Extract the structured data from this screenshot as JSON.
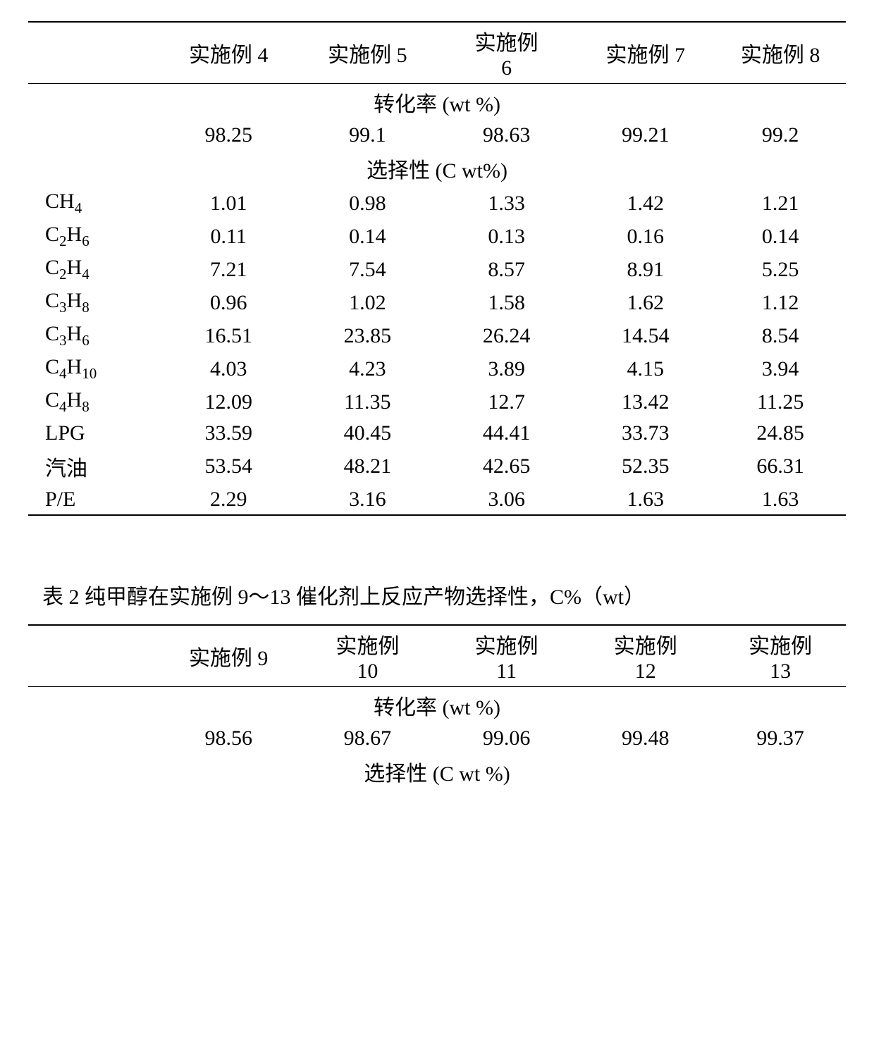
{
  "table1": {
    "headers": [
      "",
      "实施例 4",
      "实施例 5",
      "实施例 6",
      "实施例 7",
      "实施例 8"
    ],
    "section1": "转化率  (wt %)",
    "conversion": [
      "",
      "98.25",
      "99.1",
      "98.63",
      "99.21",
      "99.2"
    ],
    "section2": "选择性  (C wt%)",
    "rows": [
      {
        "label_html": "CH<sub>4</sub>",
        "cells": [
          "1.01",
          "0.98",
          "1.33",
          "1.42",
          "1.21"
        ]
      },
      {
        "label_html": "C<sub>2</sub>H<sub>6</sub>",
        "cells": [
          "0.11",
          "0.14",
          "0.13",
          "0.16",
          "0.14"
        ]
      },
      {
        "label_html": "C<sub>2</sub>H<sub>4</sub>",
        "cells": [
          "7.21",
          "7.54",
          "8.57",
          "8.91",
          "5.25"
        ]
      },
      {
        "label_html": "C<sub>3</sub>H<sub>8</sub>",
        "cells": [
          "0.96",
          "1.02",
          "1.58",
          "1.62",
          "1.12"
        ]
      },
      {
        "label_html": "C<sub>3</sub>H<sub>6</sub>",
        "cells": [
          "16.51",
          "23.85",
          "26.24",
          "14.54",
          "8.54"
        ]
      },
      {
        "label_html": "C<sub>4</sub>H<sub>10</sub>",
        "cells": [
          "4.03",
          "4.23",
          "3.89",
          "4.15",
          "3.94"
        ]
      },
      {
        "label_html": "C<sub>4</sub>H<sub>8</sub>",
        "cells": [
          "12.09",
          "11.35",
          "12.7",
          "13.42",
          "11.25"
        ]
      },
      {
        "label_html": "LPG",
        "cells": [
          "33.59",
          "40.45",
          "44.41",
          "33.73",
          "24.85"
        ]
      },
      {
        "label_html": "汽油",
        "cells": [
          "53.54",
          "48.21",
          "42.65",
          "52.35",
          "66.31"
        ]
      },
      {
        "label_html": "P/E",
        "cells": [
          "2.29",
          "3.16",
          "3.06",
          "1.63",
          "1.63"
        ]
      }
    ]
  },
  "caption2": "表 2  纯甲醇在实施例 9～13 催化剂上反应产物选择性，C%（wt）",
  "table2": {
    "headers": [
      "",
      "实施例 9",
      "实施例 10",
      "实施例 11",
      "实施例 12",
      "实施例 13"
    ],
    "section1": "转化率  (wt %)",
    "conversion": [
      "",
      "98.56",
      "98.67",
      "99.06",
      "99.48",
      "99.37"
    ],
    "section2": "选择性  (C wt %)"
  },
  "style": {
    "font_family": "Times New Roman / SimSun",
    "font_size_pt": 22,
    "text_color": "#000000",
    "background_color": "#ffffff",
    "rule_color": "#000000",
    "col_widths_pct": [
      16,
      17,
      17,
      17,
      17,
      16
    ]
  }
}
